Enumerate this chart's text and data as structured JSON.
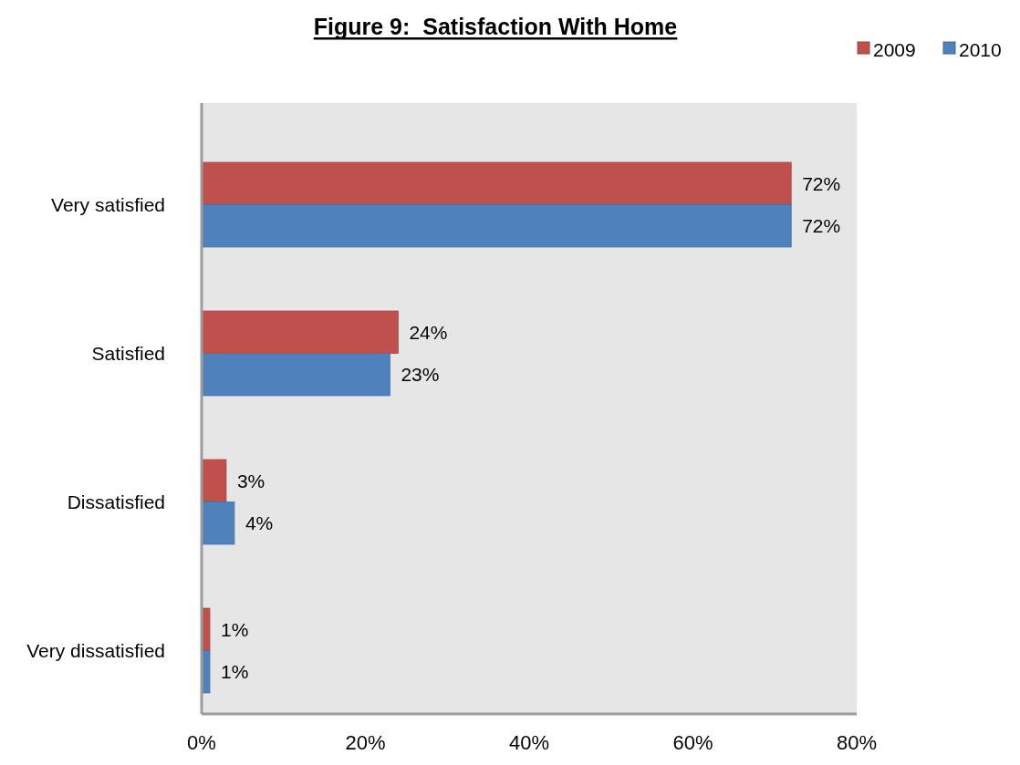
{
  "chart_data": {
    "type": "bar",
    "orientation": "horizontal",
    "title": "Figure 9:  Satisfaction With Home",
    "categories": [
      "Very satisfied",
      "Satisfied",
      "Dissatisfied",
      "Very dissatisfied"
    ],
    "series": [
      {
        "name": "2009",
        "color": "#c0504d",
        "values": [
          72,
          24,
          3,
          1
        ],
        "value_labels": [
          "72%",
          "24%",
          "3%",
          "1%"
        ]
      },
      {
        "name": "2010",
        "color": "#4f81bd",
        "values": [
          72,
          23,
          4,
          1
        ],
        "value_labels": [
          "72%",
          "23%",
          "4%",
          "1%"
        ]
      }
    ],
    "xlim": [
      0,
      80
    ],
    "xticks": [
      {
        "value": 0,
        "label": "0%"
      },
      {
        "value": 20,
        "label": "20%"
      },
      {
        "value": 40,
        "label": "40%"
      },
      {
        "value": 60,
        "label": "60%"
      },
      {
        "value": 80,
        "label": "80%"
      }
    ],
    "legend": "top right"
  }
}
